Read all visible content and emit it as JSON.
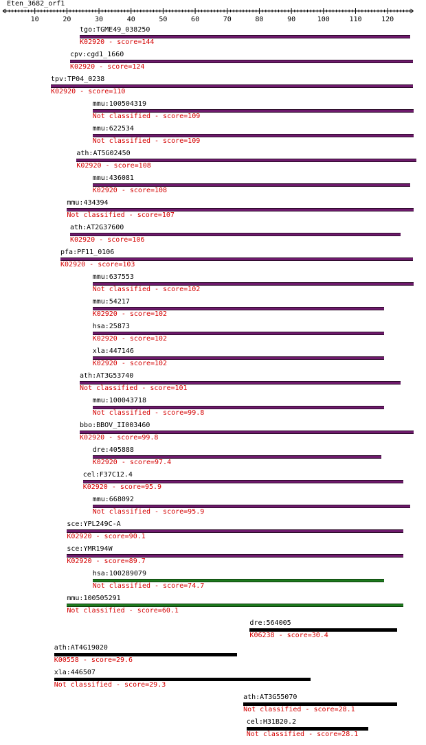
{
  "title": "Eten_3682_orf1",
  "ruler": {
    "min": 0,
    "max": 128,
    "ticks": [
      10,
      20,
      30,
      40,
      50,
      60,
      70,
      80,
      90,
      100,
      110,
      120
    ]
  },
  "colors": {
    "purple": "#6e1a6c",
    "green": "#1e7a1e",
    "black": "#000000",
    "annotation": "#d40000"
  },
  "hits": [
    {
      "name": "tgo:TGME49_038250",
      "annotation": "K02920 - score=144",
      "start": 24,
      "end": 127,
      "color": "purple"
    },
    {
      "name": "cpv:cgd1_1660",
      "annotation": "K02920 - score=124",
      "start": 21,
      "end": 128,
      "color": "purple"
    },
    {
      "name": "tpv:TP04_0238",
      "annotation": "K02920 - score=110",
      "start": 15,
      "end": 128,
      "color": "purple"
    },
    {
      "name": "mmu:100504319",
      "annotation": "Not classified - score=109",
      "start": 28,
      "end": 128,
      "color": "purple"
    },
    {
      "name": "mmu:622534",
      "annotation": "Not classified - score=109",
      "start": 28,
      "end": 128,
      "color": "purple"
    },
    {
      "name": "ath:AT5G02450",
      "annotation": "K02920 - score=108",
      "start": 23,
      "end": 129,
      "color": "purple"
    },
    {
      "name": "mmu:436081",
      "annotation": "K02920 - score=108",
      "start": 28,
      "end": 127,
      "color": "purple"
    },
    {
      "name": "mmu:434394",
      "annotation": "Not classified - score=107",
      "start": 20,
      "end": 128,
      "color": "purple"
    },
    {
      "name": "ath:AT2G37600",
      "annotation": "K02920 - score=106",
      "start": 21,
      "end": 124,
      "color": "purple"
    },
    {
      "name": "pfa:PF11_0106",
      "annotation": "K02920 - score=103",
      "start": 18,
      "end": 128,
      "color": "purple"
    },
    {
      "name": "mmu:637553",
      "annotation": "Not classified - score=102",
      "start": 28,
      "end": 128,
      "color": "purple"
    },
    {
      "name": "mmu:54217",
      "annotation": "K02920 - score=102",
      "start": 28,
      "end": 119,
      "color": "purple"
    },
    {
      "name": "hsa:25873",
      "annotation": "K02920 - score=102",
      "start": 28,
      "end": 119,
      "color": "purple"
    },
    {
      "name": "xla:447146",
      "annotation": "K02920 - score=102",
      "start": 28,
      "end": 119,
      "color": "purple"
    },
    {
      "name": "ath:AT3G53740",
      "annotation": "Not classified - score=101",
      "start": 24,
      "end": 124,
      "color": "purple"
    },
    {
      "name": "mmu:100043718",
      "annotation": "Not classified - score=99.8",
      "start": 28,
      "end": 119,
      "color": "purple"
    },
    {
      "name": "bbo:BBOV_II003460",
      "annotation": "K02920 - score=99.8",
      "start": 24,
      "end": 128,
      "color": "purple"
    },
    {
      "name": "dre:405888",
      "annotation": "K02920 - score=97.4",
      "start": 28,
      "end": 118,
      "color": "purple"
    },
    {
      "name": "cel:F37C12.4",
      "annotation": "K02920 - score=95.9",
      "start": 25,
      "end": 125,
      "color": "purple"
    },
    {
      "name": "mmu:668092",
      "annotation": "Not classified - score=95.9",
      "start": 28,
      "end": 127,
      "color": "purple"
    },
    {
      "name": "sce:YPL249C-A",
      "annotation": "K02920 - score=90.1",
      "start": 20,
      "end": 125,
      "color": "purple"
    },
    {
      "name": "sce:YMR194W",
      "annotation": "K02920 - score=89.7",
      "start": 20,
      "end": 125,
      "color": "purple"
    },
    {
      "name": "hsa:100289079",
      "annotation": "Not classified - score=74.7",
      "start": 28,
      "end": 119,
      "color": "green"
    },
    {
      "name": "mmu:100505291",
      "annotation": "Not classified - score=60.1",
      "start": 20,
      "end": 125,
      "color": "green"
    },
    {
      "name": "dre:564005",
      "annotation": "K06238 - score=30.4",
      "start": 77,
      "end": 123,
      "color": "black"
    },
    {
      "name": "ath:AT4G19020",
      "annotation": "K00558 - score=29.6",
      "start": 16,
      "end": 73,
      "color": "black"
    },
    {
      "name": "xla:446507",
      "annotation": "Not classified - score=29.3",
      "start": 16,
      "end": 96,
      "color": "black"
    },
    {
      "name": "ath:AT3G55070",
      "annotation": "Not classified - score=28.1",
      "start": 75,
      "end": 123,
      "color": "black"
    },
    {
      "name": "cel:H31B20.2",
      "annotation": "Not classified - score=28.1",
      "start": 76,
      "end": 114,
      "color": "black"
    }
  ]
}
